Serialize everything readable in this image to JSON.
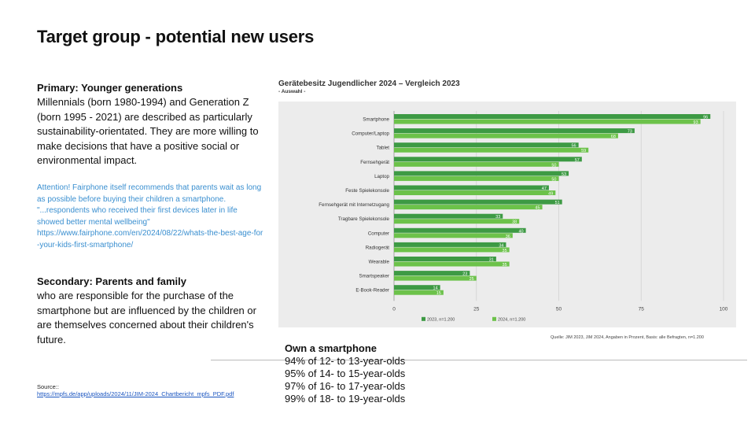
{
  "slide": {
    "title": "Target group - potential new users"
  },
  "primary": {
    "heading": "Primary: Younger generations",
    "text": "Millennials (born 1980-1994) and Generation Z (born 1995 - 2021) are described as particularly sustainability-orientated. They are more willing to make decisions that have a positive social or environmental impact."
  },
  "attention": {
    "text": "Attention! Fairphone itself recommends that parents wait as long as possible before buying their children a smartphone. \"...respondents who received their first devices later in life showed better mental wellbeing\"",
    "link": "https://www.fairphone.com/en/2024/08/22/whats-the-best-age-for-your-kids-first-smartphone/"
  },
  "secondary": {
    "heading": "Secondary: Parents and family",
    "text": "who are responsible for the purchase of the smartphone but are influenced by the children or are themselves concerned about their children's future."
  },
  "source": {
    "label": "Source::",
    "link": "https://mpfs.de/app/uploads/2024/11/JIM-2024_Chartbericht_mpfs_PDF.pdf"
  },
  "own_smartphone": {
    "heading": "Own a smartphone",
    "lines": [
      "94% of 12- to 13-year-olds",
      "95% of 14- to 15-year-olds",
      "97% of 16- to 17-year-olds",
      "99% of 18- to 19-year-olds"
    ]
  },
  "colors": {
    "series_2024": "#3d9a44",
    "series_2023": "#6cc24a",
    "chart_bg": "#ececec"
  },
  "chart_data": {
    "type": "bar",
    "orientation": "horizontal",
    "title": "Gerätebesitz Jugendlicher 2024 – Vergleich 2023",
    "subtitle": "- Auswahl -",
    "source": "Quelle: JIM 2023, JIM 2024, Angaben in Prozent, Basis: alle Befragten, n=1.200",
    "categories": [
      "Smartphone",
      "Computer/Laptop",
      "Tablet",
      "Fernsehgerät",
      "Laptop",
      "Feste Spielekonsole",
      "Fernsehgerät mit Internetzugang",
      "Tragbare Spielekonsole",
      "Computer",
      "Radiogerät",
      "Wearable",
      "Smartspeaker",
      "E-Book-Reader"
    ],
    "series": [
      {
        "name": "2023, n=1.200",
        "values": [
          96,
          73,
          56,
          57,
          53,
          47,
          51,
          33,
          40,
          34,
          31,
          23,
          14
        ]
      },
      {
        "name": "2024, n=1.200",
        "values": [
          93,
          68,
          59,
          50,
          50,
          49,
          45,
          38,
          36,
          35,
          35,
          25,
          15
        ]
      }
    ],
    "xlim": [
      0,
      100
    ],
    "xticks": [
      0,
      25,
      50,
      75,
      100
    ],
    "legend": "bottom"
  }
}
